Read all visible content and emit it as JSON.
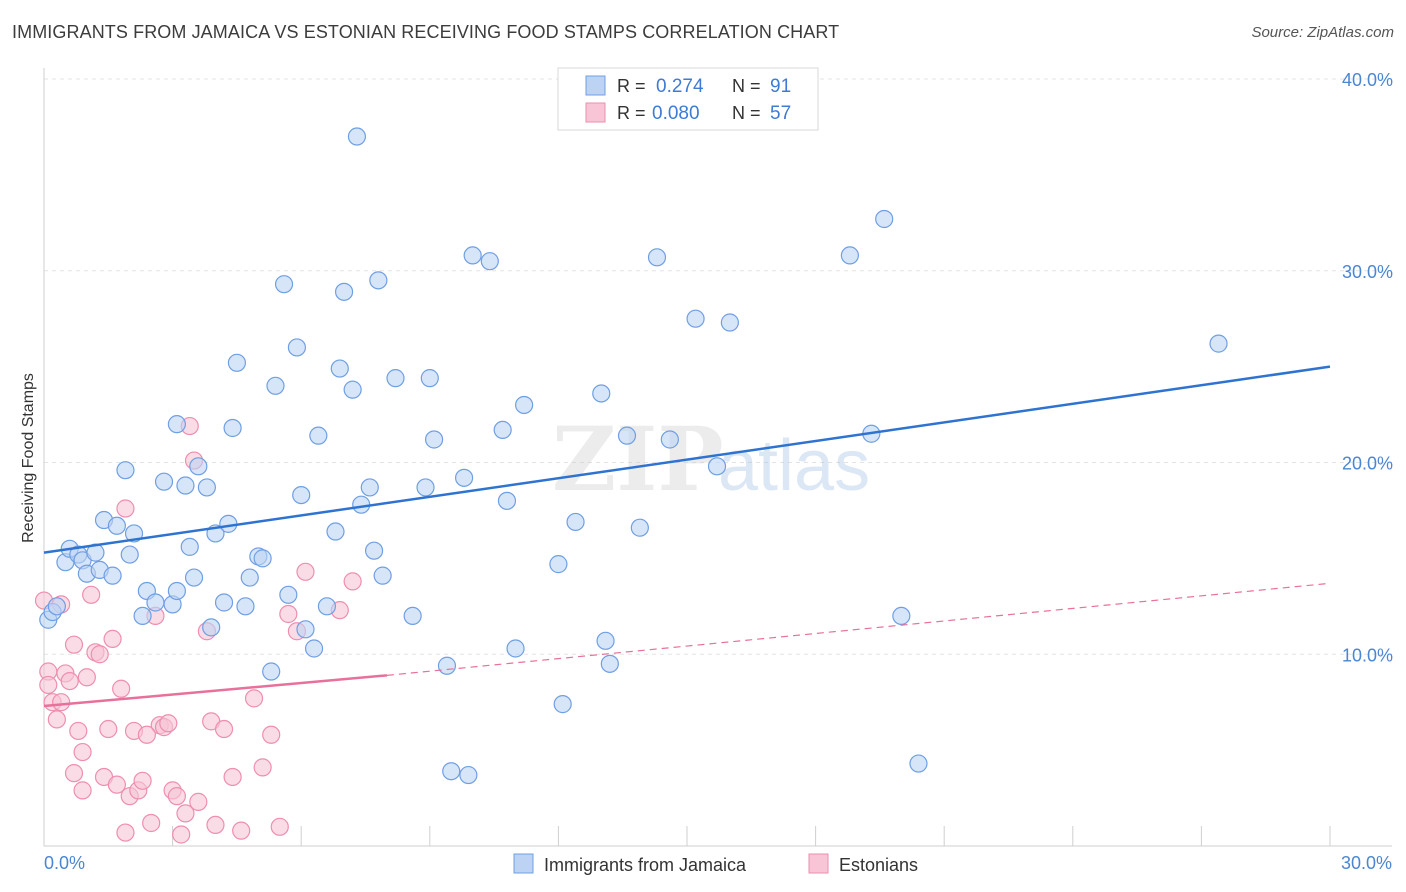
{
  "header": {
    "title": "IMMIGRANTS FROM JAMAICA VS ESTONIAN RECEIVING FOOD STAMPS CORRELATION CHART",
    "source": "Source: ZipAtlas.com"
  },
  "watermark": {
    "zip": "ZIP",
    "atlas": "atlas"
  },
  "legend_box": {
    "rows": [
      {
        "r_label": "R = ",
        "r_value": "0.274",
        "n_label": "N = ",
        "n_value": "91",
        "color": "#6f9fe3"
      },
      {
        "r_label": "R = ",
        "r_value": "0.080",
        "n_label": "N = ",
        "n_value": "57",
        "color": "#f29ab7"
      }
    ]
  },
  "colors": {
    "blue_fill": "#bcd3f3",
    "blue_stroke": "#6f9fe3",
    "blue_line": "#2f73d1",
    "pink_fill": "#f7c5d5",
    "pink_stroke": "#ee8eb0",
    "pink_line": "#e8709a",
    "grid": "#e3e3e3",
    "axis_text": "#4a86d4",
    "label_text": "#333333"
  },
  "chart_data": {
    "type": "scatter",
    "title": "IMMIGRANTS FROM JAMAICA VS ESTONIAN RECEIVING FOOD STAMPS CORRELATION CHART",
    "xlabel": "",
    "ylabel": "Receiving Food Stamps",
    "xlim": [
      0,
      30
    ],
    "ylim": [
      0,
      40
    ],
    "x_tick_labels": [
      "0.0%",
      "30.0%"
    ],
    "y_tick_labels": [
      "10.0%",
      "20.0%",
      "30.0%",
      "40.0%"
    ],
    "y_ticks": [
      10,
      20,
      30,
      40
    ],
    "grid": true,
    "legend_position": "bottom",
    "series": [
      {
        "name": "Immigrants from Jamaica",
        "r": 0.274,
        "n": 91,
        "trend": {
          "x": [
            0,
            30
          ],
          "y": [
            15.3,
            25.0
          ],
          "style": "solid"
        },
        "points": [
          [
            0.1,
            11.8
          ],
          [
            0.2,
            12.2
          ],
          [
            0.3,
            12.5
          ],
          [
            0.5,
            14.8
          ],
          [
            0.6,
            15.5
          ],
          [
            0.8,
            15.2
          ],
          [
            0.9,
            14.9
          ],
          [
            1.0,
            14.2
          ],
          [
            1.2,
            15.3
          ],
          [
            1.3,
            14.4
          ],
          [
            1.4,
            17.0
          ],
          [
            1.6,
            14.1
          ],
          [
            1.7,
            16.7
          ],
          [
            1.9,
            19.6
          ],
          [
            2.0,
            15.2
          ],
          [
            2.1,
            16.3
          ],
          [
            2.3,
            12.0
          ],
          [
            2.4,
            13.3
          ],
          [
            2.6,
            12.7
          ],
          [
            2.8,
            19.0
          ],
          [
            3.0,
            12.6
          ],
          [
            3.1,
            13.3
          ],
          [
            3.1,
            22.0
          ],
          [
            3.3,
            18.8
          ],
          [
            3.4,
            15.6
          ],
          [
            3.5,
            14.0
          ],
          [
            3.6,
            19.8
          ],
          [
            3.8,
            18.7
          ],
          [
            3.9,
            11.4
          ],
          [
            4.0,
            16.3
          ],
          [
            4.2,
            12.7
          ],
          [
            4.3,
            16.8
          ],
          [
            4.4,
            21.8
          ],
          [
            4.5,
            25.2
          ],
          [
            4.7,
            12.5
          ],
          [
            4.8,
            14.0
          ],
          [
            5.0,
            15.1
          ],
          [
            5.1,
            15.0
          ],
          [
            5.3,
            9.1
          ],
          [
            5.4,
            24.0
          ],
          [
            5.6,
            29.3
          ],
          [
            5.7,
            13.1
          ],
          [
            5.9,
            26.0
          ],
          [
            6.0,
            18.3
          ],
          [
            6.1,
            11.3
          ],
          [
            6.3,
            10.3
          ],
          [
            6.4,
            21.4
          ],
          [
            6.6,
            12.5
          ],
          [
            6.8,
            16.4
          ],
          [
            6.9,
            24.9
          ],
          [
            7.0,
            28.9
          ],
          [
            7.2,
            23.8
          ],
          [
            7.4,
            17.8
          ],
          [
            7.6,
            18.7
          ],
          [
            7.7,
            15.4
          ],
          [
            7.8,
            29.5
          ],
          [
            7.9,
            14.1
          ],
          [
            8.2,
            24.4
          ],
          [
            8.6,
            12.0
          ],
          [
            8.9,
            18.7
          ],
          [
            9.0,
            24.4
          ],
          [
            9.1,
            21.2
          ],
          [
            9.4,
            9.4
          ],
          [
            9.5,
            3.9
          ],
          [
            9.8,
            19.2
          ],
          [
            9.9,
            3.7
          ],
          [
            10.0,
            30.8
          ],
          [
            10.4,
            30.5
          ],
          [
            10.7,
            21.7
          ],
          [
            10.8,
            18.0
          ],
          [
            11.0,
            10.3
          ],
          [
            11.2,
            23.0
          ],
          [
            12.0,
            14.7
          ],
          [
            12.1,
            7.4
          ],
          [
            12.4,
            16.9
          ],
          [
            13.0,
            23.6
          ],
          [
            13.1,
            10.7
          ],
          [
            13.2,
            9.5
          ],
          [
            13.6,
            21.4
          ],
          [
            13.9,
            16.6
          ],
          [
            14.3,
            30.7
          ],
          [
            14.6,
            21.2
          ],
          [
            15.2,
            27.5
          ],
          [
            15.7,
            19.8
          ],
          [
            16.0,
            27.3
          ],
          [
            7.3,
            37.0
          ],
          [
            18.8,
            30.8
          ],
          [
            19.3,
            21.5
          ],
          [
            19.6,
            32.7
          ],
          [
            20.0,
            12.0
          ],
          [
            20.4,
            4.3
          ],
          [
            27.4,
            26.2
          ]
        ]
      },
      {
        "name": "Estonians",
        "r": 0.08,
        "n": 57,
        "trend": {
          "x": [
            0,
            8.0,
            30
          ],
          "y": [
            7.3,
            8.9,
            13.7
          ],
          "style": "solid-then-dashed"
        },
        "points": [
          [
            0.0,
            12.8
          ],
          [
            0.1,
            9.1
          ],
          [
            0.1,
            8.4
          ],
          [
            0.2,
            7.5
          ],
          [
            0.3,
            6.6
          ],
          [
            0.4,
            12.6
          ],
          [
            0.4,
            7.5
          ],
          [
            0.5,
            9.0
          ],
          [
            0.6,
            8.6
          ],
          [
            0.7,
            3.8
          ],
          [
            0.7,
            10.5
          ],
          [
            0.8,
            6.0
          ],
          [
            0.9,
            4.9
          ],
          [
            1.0,
            8.8
          ],
          [
            1.1,
            13.1
          ],
          [
            1.2,
            10.1
          ],
          [
            1.3,
            10.0
          ],
          [
            1.4,
            3.6
          ],
          [
            1.5,
            6.1
          ],
          [
            1.6,
            10.8
          ],
          [
            1.7,
            3.2
          ],
          [
            1.8,
            8.2
          ],
          [
            1.9,
            17.6
          ],
          [
            2.0,
            2.6
          ],
          [
            2.1,
            6.0
          ],
          [
            2.2,
            2.9
          ],
          [
            2.3,
            3.4
          ],
          [
            2.5,
            1.2
          ],
          [
            2.6,
            12.0
          ],
          [
            2.7,
            6.3
          ],
          [
            2.8,
            6.2
          ],
          [
            2.9,
            6.4
          ],
          [
            3.0,
            2.9
          ],
          [
            3.1,
            2.6
          ],
          [
            3.3,
            1.7
          ],
          [
            3.4,
            21.9
          ],
          [
            3.5,
            20.1
          ],
          [
            3.6,
            2.3
          ],
          [
            3.8,
            11.2
          ],
          [
            3.9,
            6.5
          ],
          [
            4.0,
            1.1
          ],
          [
            4.2,
            6.1
          ],
          [
            4.4,
            3.6
          ],
          [
            4.6,
            0.8
          ],
          [
            4.9,
            7.7
          ],
          [
            5.1,
            4.1
          ],
          [
            5.3,
            5.8
          ],
          [
            5.5,
            1.0
          ],
          [
            5.7,
            12.1
          ],
          [
            5.9,
            11.2
          ],
          [
            6.1,
            14.3
          ],
          [
            6.9,
            12.3
          ],
          [
            7.2,
            13.8
          ],
          [
            1.9,
            0.7
          ],
          [
            2.4,
            5.8
          ],
          [
            3.2,
            0.6
          ],
          [
            0.9,
            2.9
          ]
        ]
      }
    ]
  },
  "bottom_legend": {
    "items": [
      {
        "label": "Immigrants from Jamaica"
      },
      {
        "label": "Estonians"
      }
    ]
  }
}
